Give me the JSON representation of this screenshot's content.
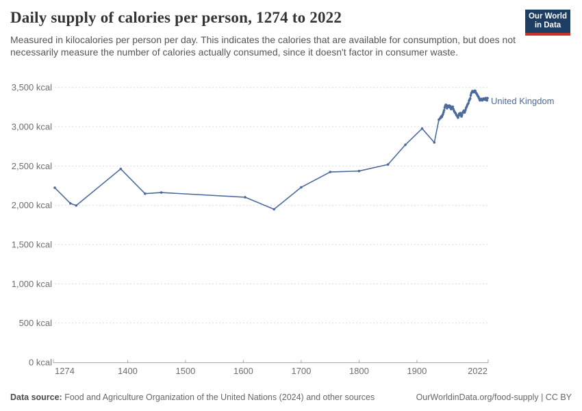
{
  "header": {
    "title": "Daily supply of calories per person, 1274 to 2022",
    "subtitle": "Measured in kilocalories per person per day. This indicates the calories that are available for consumption, but does not necessarily measure the number of calories actually consumed, since it doesn't factor in consumer waste.",
    "logo": {
      "line1": "Our World",
      "line2": "in Data"
    }
  },
  "chart_data": {
    "type": "line",
    "title": "Daily supply of calories per person, 1274 to 2022",
    "xlabel": "",
    "ylabel": "",
    "x_range": [
      1274,
      2022
    ],
    "y_range": [
      0,
      3500
    ],
    "x_ticks": [
      1274,
      1400,
      1500,
      1600,
      1700,
      1800,
      1900,
      2022
    ],
    "y_ticks": [
      0,
      500,
      1000,
      1500,
      2000,
      2500,
      3000,
      3500
    ],
    "y_tick_suffix": " kcal",
    "grid": "horizontal-dashed",
    "legend_position": "end-of-line",
    "series": [
      {
        "name": "United Kingdom",
        "color": "#4c6a9c",
        "points": [
          [
            1274,
            2223
          ],
          [
            1301,
            2024
          ],
          [
            1311,
            1997
          ],
          [
            1388,
            2463
          ],
          [
            1430,
            2148
          ],
          [
            1458,
            2162
          ],
          [
            1603,
            2103
          ],
          [
            1653,
            1949
          ],
          [
            1700,
            2229
          ],
          [
            1750,
            2424
          ],
          [
            1800,
            2436
          ],
          [
            1850,
            2520
          ],
          [
            1880,
            2770
          ],
          [
            1909,
            2977
          ],
          [
            1930,
            2800
          ],
          [
            1938,
            3090
          ],
          [
            1940,
            3105
          ],
          [
            1941,
            3115
          ],
          [
            1942,
            3130
          ],
          [
            1943,
            3125
          ],
          [
            1944,
            3145
          ],
          [
            1945,
            3160
          ],
          [
            1946,
            3185
          ],
          [
            1947,
            3210
          ],
          [
            1948,
            3245
          ],
          [
            1949,
            3265
          ],
          [
            1950,
            3280
          ],
          [
            1951,
            3275
          ],
          [
            1952,
            3235
          ],
          [
            1953,
            3250
          ],
          [
            1954,
            3265
          ],
          [
            1955,
            3255
          ],
          [
            1956,
            3270
          ],
          [
            1957,
            3245
          ],
          [
            1958,
            3260
          ],
          [
            1959,
            3225
          ],
          [
            1960,
            3250
          ],
          [
            1961,
            3240
          ],
          [
            1962,
            3255
          ],
          [
            1963,
            3225
          ],
          [
            1964,
            3205
          ],
          [
            1965,
            3190
          ],
          [
            1966,
            3180
          ],
          [
            1967,
            3170
          ],
          [
            1968,
            3150
          ],
          [
            1969,
            3145
          ],
          [
            1970,
            3130
          ],
          [
            1971,
            3115
          ],
          [
            1972,
            3140
          ],
          [
            1973,
            3165
          ],
          [
            1974,
            3150
          ],
          [
            1975,
            3175
          ],
          [
            1976,
            3155
          ],
          [
            1977,
            3130
          ],
          [
            1978,
            3150
          ],
          [
            1979,
            3180
          ],
          [
            1980,
            3190
          ],
          [
            1981,
            3205
          ],
          [
            1982,
            3180
          ],
          [
            1983,
            3190
          ],
          [
            1984,
            3215
          ],
          [
            1985,
            3240
          ],
          [
            1986,
            3255
          ],
          [
            1987,
            3275
          ],
          [
            1988,
            3290
          ],
          [
            1989,
            3300
          ],
          [
            1990,
            3330
          ],
          [
            1991,
            3345
          ],
          [
            1992,
            3360
          ],
          [
            1993,
            3400
          ],
          [
            1994,
            3425
          ],
          [
            1995,
            3440
          ],
          [
            1996,
            3455
          ],
          [
            1997,
            3450
          ],
          [
            1998,
            3440
          ],
          [
            1999,
            3445
          ],
          [
            2000,
            3460
          ],
          [
            2001,
            3455
          ],
          [
            2002,
            3430
          ],
          [
            2003,
            3425
          ],
          [
            2004,
            3410
          ],
          [
            2005,
            3395
          ],
          [
            2006,
            3385
          ],
          [
            2007,
            3370
          ],
          [
            2008,
            3350
          ],
          [
            2009,
            3335
          ],
          [
            2010,
            3345
          ],
          [
            2011,
            3355
          ],
          [
            2012,
            3340
          ],
          [
            2013,
            3335
          ],
          [
            2014,
            3350
          ],
          [
            2015,
            3360
          ],
          [
            2016,
            3350
          ],
          [
            2017,
            3345
          ],
          [
            2018,
            3360
          ],
          [
            2019,
            3365
          ],
          [
            2020,
            3340
          ],
          [
            2021,
            3335
          ],
          [
            2022,
            3365
          ]
        ]
      }
    ]
  },
  "footer": {
    "source_label": "Data source:",
    "source_text": " Food and Agriculture Organization of the United Nations (2024) and other sources",
    "link_text": "OurWorldinData.org/food-supply | CC BY"
  },
  "colors": {
    "accent_line": "#4c6a9c",
    "logo_bg": "#1d3d63",
    "logo_red": "#c9342a",
    "grid": "#dadada",
    "axis": "#a8a8a8",
    "axis_text": "#6e6e6e",
    "title_text": "#333333",
    "subtitle_text": "#555555",
    "footer_text": "#666666"
  }
}
